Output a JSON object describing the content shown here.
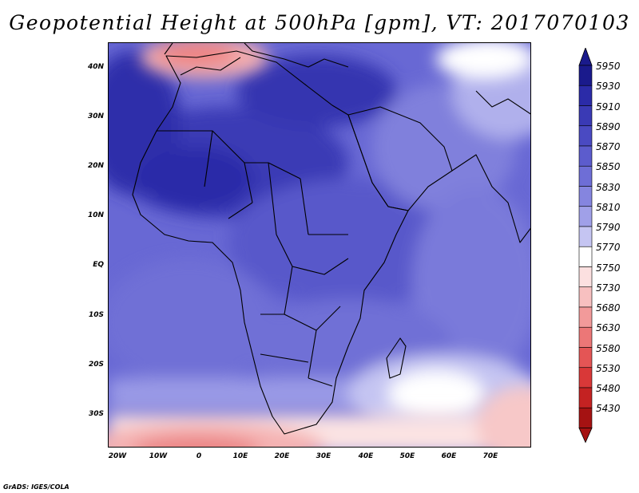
{
  "title": "Geopotential Height at 500hPa [gpm], VT: 2017070103",
  "credit": "GrADS: IGES/COLA",
  "lat_ticks": [
    "40N",
    "30N",
    "20N",
    "10N",
    "EQ",
    "10S",
    "20S",
    "30S"
  ],
  "lon_ticks": [
    "20W",
    "10W",
    "0",
    "10E",
    "20E",
    "30E",
    "40E",
    "50E",
    "60E",
    "70E"
  ],
  "colorbar": {
    "levels": [
      "5950",
      "5930",
      "5910",
      "5890",
      "5870",
      "5850",
      "5830",
      "5810",
      "5790",
      "5770",
      "5750",
      "5730",
      "5680",
      "5630",
      "5580",
      "5530",
      "5480",
      "5430"
    ],
    "colors": [
      "#1a1a8c",
      "#2b2ba8",
      "#3a3ab5",
      "#4a4ac2",
      "#5c5ccd",
      "#6e6ed6",
      "#8585df",
      "#a0a0e8",
      "#c5c5f2",
      "#ffffff",
      "#fce0e0",
      "#f7c0c0",
      "#f29a9a",
      "#ec7777",
      "#e45555",
      "#d93838",
      "#c42222",
      "#a51212"
    ],
    "top_color": "#1a1a8c",
    "bottom_color": "#a51212"
  }
}
